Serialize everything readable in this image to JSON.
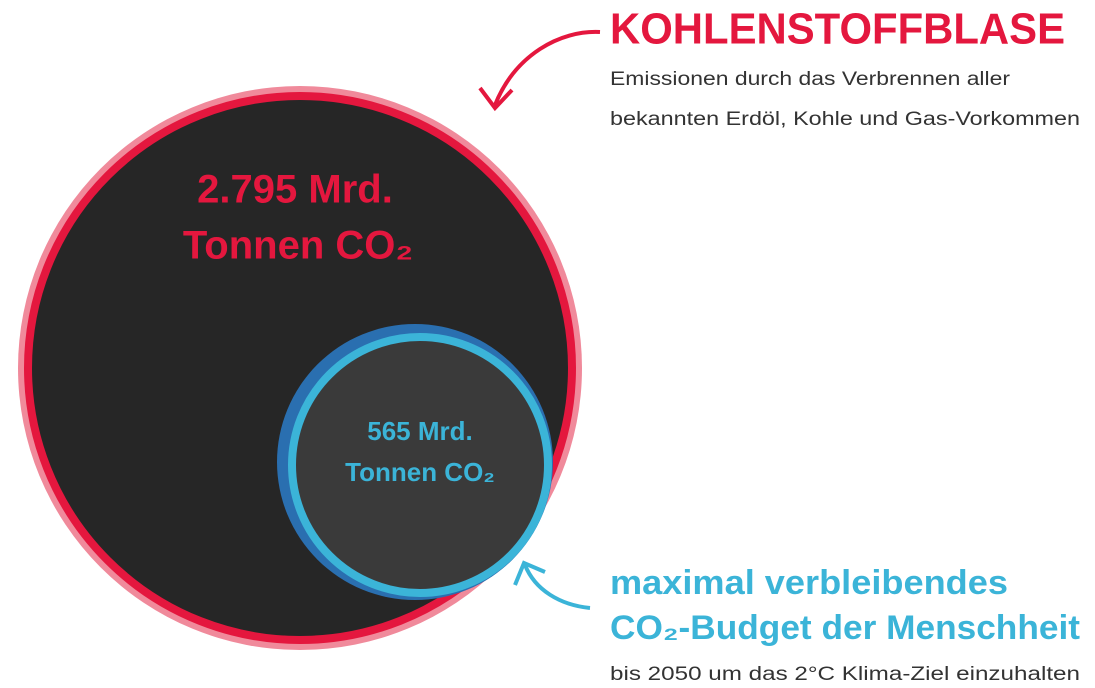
{
  "title": "KOHLENSTOFFBLASE",
  "description": [
    "Emissionen durch das Verbrennen aller",
    "bekannten Erdöl, Kohle und Gas-Vorkommen"
  ],
  "carbon_bubble": {
    "amount": "2.795 Mrd.",
    "unit": "Tonnen CO₂"
  },
  "budget_bubble": {
    "amount": "565 Mrd.",
    "unit": "Tonnen CO₂"
  },
  "budget_title": [
    "maximal verbleibendes",
    "CO₂-Budget der Menschheit"
  ],
  "budget_note": "bis 2050 um das 2°C Klima-Ziel einzuhalten"
}
